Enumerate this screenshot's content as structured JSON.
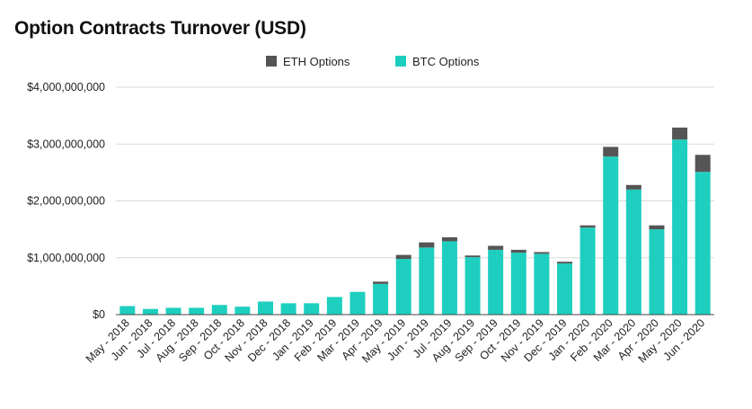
{
  "chart_data": {
    "type": "bar",
    "stacked": true,
    "title": "Option Contracts Turnover (USD)",
    "xlabel": "",
    "ylabel": "",
    "ylim": [
      0,
      4000000000
    ],
    "yticks": [
      0,
      1000000000,
      2000000000,
      3000000000,
      4000000000
    ],
    "ytick_labels": [
      "$0",
      "$1,000,000,000",
      "$2,000,000,000",
      "$3,000,000,000",
      "$4,000,000,000"
    ],
    "grid": true,
    "legend": "top-center",
    "categories": [
      "May - 2018",
      "Jun - 2018",
      "Jul - 2018",
      "Aug - 2018",
      "Sep - 2018",
      "Oct - 2018",
      "Nov - 2018",
      "Dec - 2018",
      "Jan - 2019",
      "Feb - 2019",
      "Mar - 2019",
      "Apr - 2019",
      "May - 2019",
      "Jun - 2019",
      "Jul - 2019",
      "Aug - 2019",
      "Sep - 2019",
      "Oct - 2019",
      "Nov - 2019",
      "Dec - 2019",
      "Jan - 2020",
      "Feb - 2020",
      "Mar - 2020",
      "Apr - 2020",
      "May - 2020",
      "Jun - 2020"
    ],
    "series": [
      {
        "name": "BTC Options",
        "color": "#1ecfbf",
        "values": [
          150000000,
          100000000,
          120000000,
          120000000,
          170000000,
          140000000,
          230000000,
          200000000,
          200000000,
          310000000,
          400000000,
          540000000,
          980000000,
          1180000000,
          1290000000,
          1010000000,
          1140000000,
          1090000000,
          1070000000,
          900000000,
          1530000000,
          2780000000,
          2200000000,
          1500000000,
          3080000000,
          2510000000
        ]
      },
      {
        "name": "ETH Options",
        "color": "#555555",
        "values": [
          0,
          0,
          0,
          0,
          0,
          0,
          0,
          0,
          0,
          0,
          0,
          40000000,
          70000000,
          90000000,
          70000000,
          30000000,
          70000000,
          50000000,
          30000000,
          30000000,
          40000000,
          170000000,
          80000000,
          70000000,
          210000000,
          300000000
        ]
      }
    ]
  }
}
